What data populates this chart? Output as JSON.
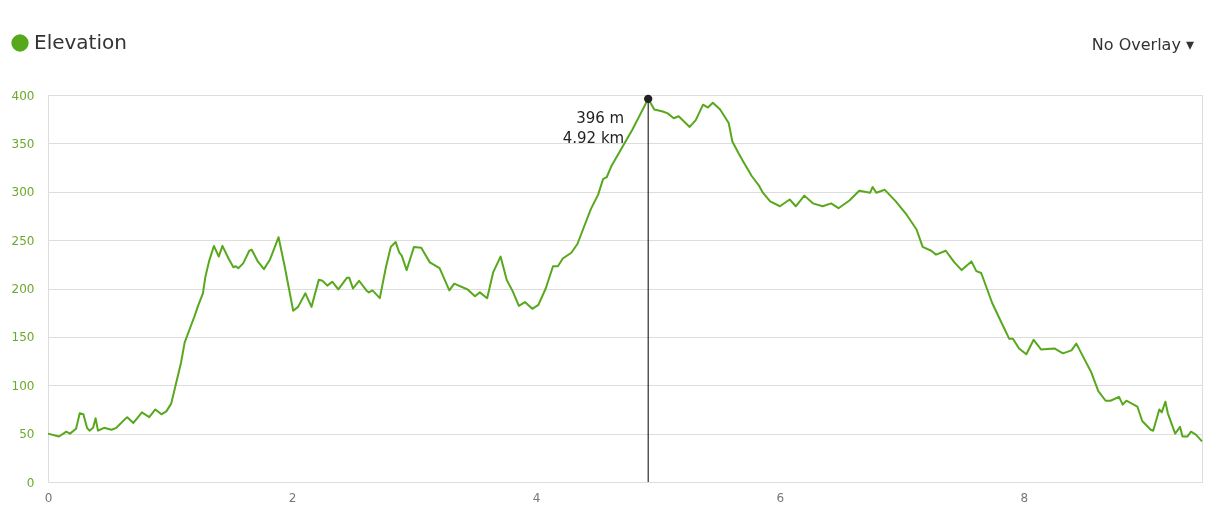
{
  "chart_data": {
    "type": "line",
    "x": [
      0,
      0.09,
      0.15,
      0.18,
      0.23,
      0.26,
      0.29,
      0.32,
      0.34,
      0.37,
      0.39,
      0.41,
      0.46,
      0.52,
      0.56,
      0.64,
      0.65,
      0.7,
      0.77,
      0.83,
      0.88,
      0.93,
      0.97,
      1.01,
      1.05,
      1.09,
      1.12,
      1.17,
      1.2,
      1.23,
      1.27,
      1.29,
      1.32,
      1.36,
      1.4,
      1.43,
      1.48,
      1.52,
      1.54,
      1.56,
      1.6,
      1.65,
      1.67,
      1.72,
      1.77,
      1.82,
      1.89,
      1.94,
      2.01,
      2.05,
      2.11,
      2.16,
      2.22,
      2.25,
      2.29,
      2.33,
      2.38,
      2.45,
      2.47,
      2.5,
      2.55,
      2.61,
      2.63,
      2.66,
      2.72,
      2.77,
      2.81,
      2.85,
      2.88,
      2.9,
      2.94,
      3.0,
      3.06,
      3.13,
      3.21,
      3.29,
      3.33,
      3.44,
      3.5,
      3.54,
      3.6,
      3.65,
      3.71,
      3.76,
      3.81,
      3.86,
      3.91,
      3.97,
      4.02,
      4.08,
      4.14,
      4.18,
      4.22,
      4.29,
      4.34,
      4.41,
      4.45,
      4.51,
      4.55,
      4.58,
      4.62,
      4.79,
      4.92,
      4.97,
      5.04,
      5.08,
      5.13,
      5.17,
      5.26,
      5.31,
      5.37,
      5.41,
      5.45,
      5.51,
      5.58,
      5.61,
      5.66,
      5.7,
      5.77,
      5.83,
      5.86,
      5.92,
      6.0,
      6.08,
      6.13,
      6.2,
      6.27,
      6.35,
      6.42,
      6.48,
      6.57,
      6.65,
      6.74,
      6.76,
      6.79,
      6.86,
      6.95,
      7.04,
      7.12,
      7.17,
      7.24,
      7.28,
      7.36,
      7.43,
      7.49,
      7.57,
      7.61,
      7.65,
      7.74,
      7.8,
      7.88,
      7.91,
      7.96,
      8.02,
      8.08,
      8.14,
      8.25,
      8.32,
      8.39,
      8.43,
      8.5,
      8.55,
      8.61,
      8.67,
      8.71,
      8.78,
      8.81,
      8.84,
      8.93,
      8.97,
      9.04,
      9.06,
      9.11,
      9.13,
      9.16,
      9.18,
      9.24,
      9.28,
      9.3,
      9.34,
      9.37,
      9.41,
      9.46
    ],
    "series": [
      {
        "name": "Elevation",
        "color": "#58a81e",
        "values": [
          50,
          47,
          52,
          50,
          55,
          71,
          70,
          56,
          53,
          56,
          66,
          53,
          56,
          54,
          56,
          66,
          67,
          61,
          72,
          67,
          75,
          70,
          73,
          81,
          102,
          123,
          144,
          161,
          171,
          182,
          195,
          212,
          228,
          244,
          233,
          244,
          231,
          222,
          223,
          221,
          226,
          239,
          240,
          228,
          220,
          230,
          253,
          223,
          177,
          181,
          195,
          181,
          209,
          208,
          203,
          207,
          199,
          211,
          211,
          200,
          208,
          198,
          196,
          198,
          190,
          222,
          243,
          248,
          237,
          234,
          219,
          243,
          242,
          227,
          221,
          198,
          205,
          199,
          192,
          196,
          190,
          217,
          233,
          209,
          197,
          182,
          186,
          179,
          183,
          200,
          223,
          223,
          231,
          237,
          246,
          269,
          282,
          297,
          313,
          315,
          327,
          364,
          396,
          385,
          383,
          381,
          376,
          378,
          367,
          374,
          390,
          387,
          392,
          385,
          371,
          352,
          340,
          331,
          316,
          306,
          299,
          290,
          285,
          292,
          285,
          296,
          288,
          285,
          288,
          283,
          291,
          301,
          299,
          305,
          299,
          302,
          290,
          276,
          261,
          243,
          239,
          235,
          239,
          227,
          219,
          228,
          218,
          216,
          185,
          169,
          148,
          148,
          138,
          132,
          147,
          137,
          138,
          133,
          136,
          143,
          126,
          114,
          94,
          84,
          84,
          88,
          80,
          84,
          78,
          63,
          54,
          53,
          75,
          72,
          83,
          71,
          50,
          57,
          47,
          47,
          52,
          49,
          42
        ]
      }
    ],
    "xlim": [
      0,
      9.46
    ],
    "ylim": [
      0,
      400
    ],
    "xticks": [
      0,
      2,
      4,
      6,
      8
    ],
    "yticks": [
      0,
      50,
      100,
      150,
      200,
      250,
      300,
      350,
      400
    ],
    "grid": "y",
    "legend": "top left",
    "marker": "none",
    "line_style": "solid",
    "ref_lines": [
      {
        "axis": "x",
        "value": 4.92,
        "color": "#000000"
      }
    ],
    "annotations": [
      {
        "text": "396 m\n4.92 km",
        "x": 4.92,
        "y": 396
      },
      "No Overlay ▾"
    ]
  }
}
